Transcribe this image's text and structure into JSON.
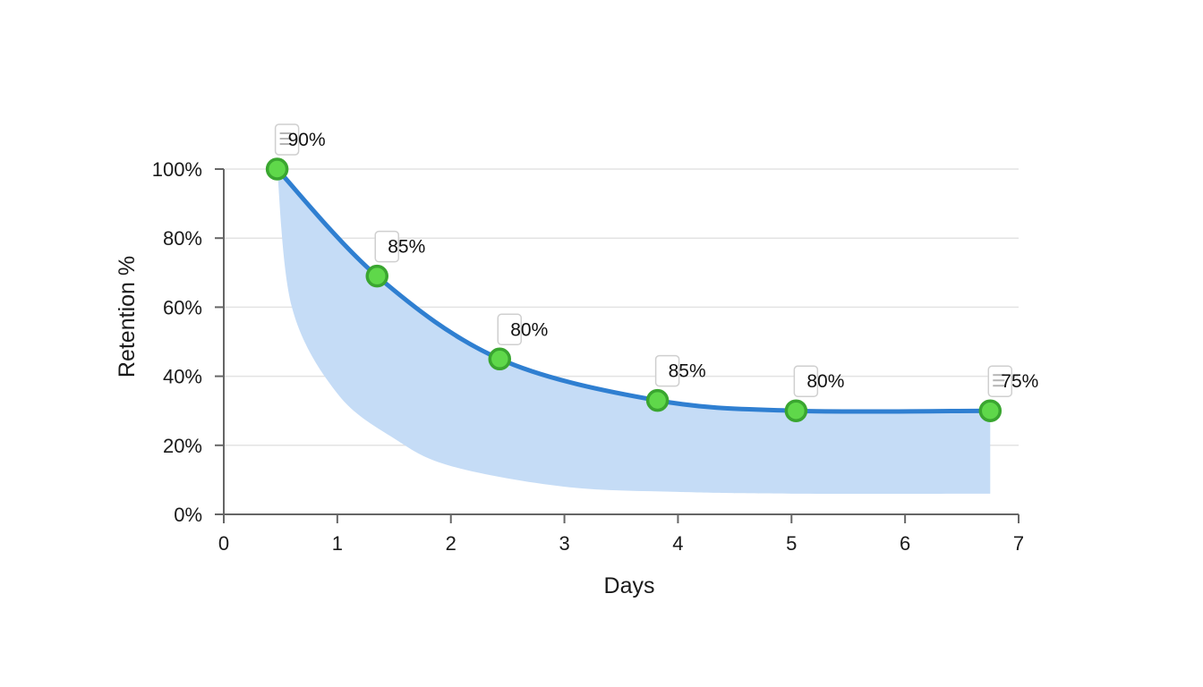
{
  "chart_data": {
    "type": "line",
    "title": "",
    "xlabel": "Days",
    "ylabel": "Retention %",
    "xlim": [
      0,
      7
    ],
    "ylim": [
      0,
      100
    ],
    "x_ticks": [
      "0",
      "1",
      "2",
      "3",
      "4",
      "5",
      "6",
      "7"
    ],
    "y_ticks": [
      "0%",
      "20%",
      "40%",
      "60%",
      "80%",
      "100%"
    ],
    "grid": {
      "horizontal": true,
      "vertical": false
    },
    "legend": null,
    "series": [
      {
        "name": "Retention",
        "color": "#2f7fd1",
        "marker_color": "#5fd84a",
        "marker_edge": "#3aa630",
        "x": [
          0.47,
          1.35,
          2.43,
          3.82,
          5.04,
          6.75
        ],
        "values": [
          100,
          69,
          45,
          33,
          30,
          30
        ]
      }
    ],
    "band": {
      "color": "#c5dcf6",
      "upper": "series line",
      "lower_x": [
        0.47,
        0.6,
        1.0,
        1.5,
        2.0,
        3.0,
        4.0,
        5.0,
        6.75
      ],
      "lower_values": [
        100,
        60,
        35,
        22,
        14,
        8,
        6.5,
        6,
        6
      ]
    },
    "data_labels": [
      {
        "x": 0.47,
        "text": "90%",
        "icon": "note-icon"
      },
      {
        "x": 1.35,
        "text": "85%"
      },
      {
        "x": 2.43,
        "text": "80%"
      },
      {
        "x": 3.82,
        "text": "85%"
      },
      {
        "x": 5.04,
        "text": "80%"
      },
      {
        "x": 6.75,
        "text": "75%",
        "icon": "note-icon"
      }
    ]
  }
}
